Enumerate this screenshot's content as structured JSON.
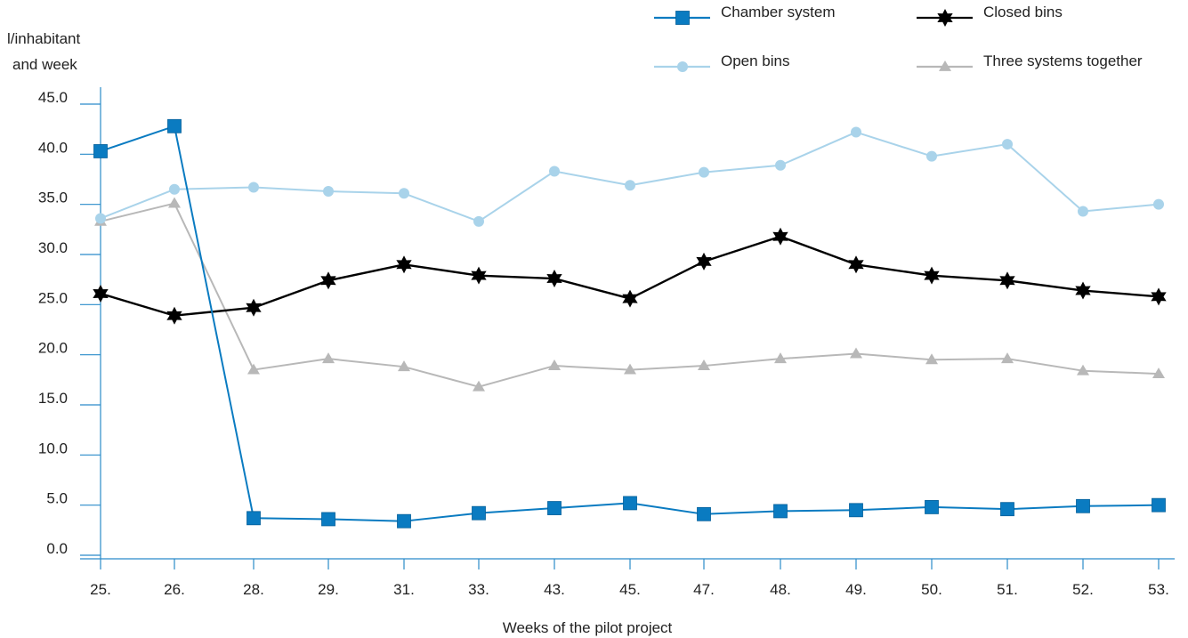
{
  "chart_data": {
    "type": "line",
    "title": "",
    "xlabel": "Weeks of the pilot project",
    "ylabel_lines": [
      "l/inhabitant",
      "and week"
    ],
    "categories": [
      "25.",
      "26.",
      "28.",
      "29.",
      "31.",
      "33.",
      "43.",
      "45.",
      "47.",
      "48.",
      "49.",
      "50.",
      "51.",
      "52.",
      "53."
    ],
    "y_ticks": [
      "0.0",
      "5.0",
      "10.0",
      "15.0",
      "20.0",
      "25.0",
      "30.0",
      "35.0",
      "40.0",
      "45.0"
    ],
    "ylim": [
      0,
      45
    ],
    "grid": false,
    "legend_position": "top-right",
    "series": [
      {
        "name": "Chamber system",
        "color": "#0a7bc1",
        "marker": "square",
        "values": [
          40.3,
          42.8,
          3.7,
          3.6,
          3.4,
          4.2,
          4.7,
          5.2,
          4.1,
          4.4,
          4.5,
          4.8,
          4.6,
          4.9,
          5.0
        ]
      },
      {
        "name": "Closed bins",
        "color": "#000000",
        "marker": "star",
        "values": [
          26.1,
          23.9,
          24.7,
          27.4,
          29.0,
          27.9,
          27.6,
          25.6,
          29.3,
          31.8,
          29.0,
          27.9,
          27.4,
          26.4,
          25.8
        ]
      },
      {
        "name": "Open bins",
        "color": "#a9d3ea",
        "marker": "circle",
        "values": [
          33.6,
          36.5,
          36.7,
          36.3,
          36.1,
          33.3,
          38.3,
          36.9,
          38.2,
          38.9,
          42.2,
          39.8,
          41.0,
          34.3,
          35.0
        ]
      },
      {
        "name": "Three systems together",
        "color": "#b8b8b8",
        "marker": "triangle",
        "values": [
          33.3,
          35.1,
          18.5,
          19.6,
          18.8,
          16.8,
          18.9,
          18.5,
          18.9,
          19.6,
          20.1,
          19.5,
          19.6,
          18.4,
          18.1
        ]
      }
    ]
  }
}
